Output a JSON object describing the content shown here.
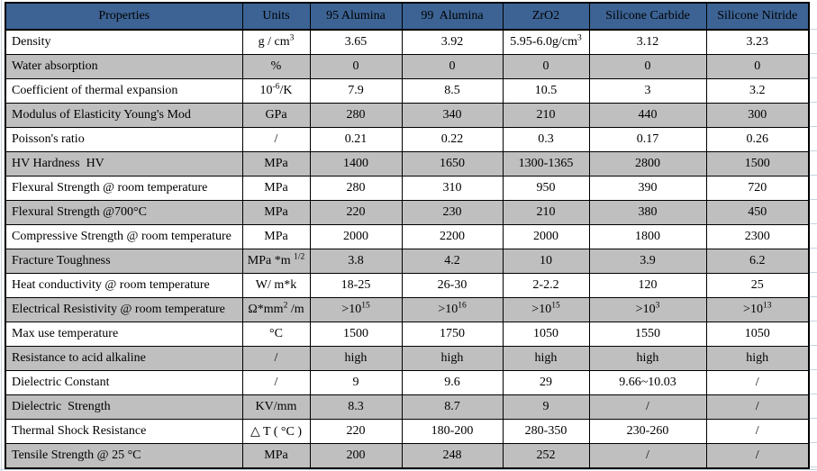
{
  "colors": {
    "header_bg": "#3c6394",
    "row_bg": "#ffffff",
    "row_alt_bg": "#bfbfbf",
    "border": "#000000",
    "gridline": "#c6d3e2",
    "text": "#000000"
  },
  "table": {
    "columns": [
      "Properties",
      "Units",
      "95 Alumina",
      "99  Alumina",
      "ZrO2",
      "Silicone Carbide",
      "Silicone Nitride"
    ],
    "rows": [
      {
        "property": "Density",
        "unit": [
          {
            "text": "g / cm"
          },
          {
            "sup": "3"
          }
        ],
        "values": [
          "3.65",
          "3.92",
          [
            {
              "text": "5.95-6.0g/cm"
            },
            {
              "sup": "3"
            }
          ],
          "3.12",
          "3.23"
        ]
      },
      {
        "property": "Water absorption",
        "unit": "%",
        "values": [
          "0",
          "0",
          "0",
          "0",
          "0"
        ]
      },
      {
        "property": "Coefficient of thermal expansion",
        "unit": [
          {
            "text": "10"
          },
          {
            "sup": "-6"
          },
          {
            "text": "/K"
          }
        ],
        "values": [
          "7.9",
          "8.5",
          "10.5",
          "3",
          "3.2"
        ]
      },
      {
        "property": "Modulus of Elasticity Young's Mod",
        "unit": "GPa",
        "values": [
          "280",
          "340",
          "210",
          "440",
          "300"
        ]
      },
      {
        "property": "Poisson's ratio",
        "unit": "/",
        "values": [
          "0.21",
          "0.22",
          "0.3",
          "0.17",
          "0.26"
        ]
      },
      {
        "property": "HV Hardness  HV",
        "unit": "MPa",
        "values": [
          "1400",
          "1650",
          "1300-1365",
          "2800",
          "1500"
        ]
      },
      {
        "property": "Flexural Strength @ room temperature",
        "unit": "MPa",
        "values": [
          "280",
          "310",
          "950",
          "390",
          "720"
        ]
      },
      {
        "property": "Flexural Strength @700°C",
        "unit": "MPa",
        "values": [
          "220",
          "230",
          "210",
          "380",
          "450"
        ]
      },
      {
        "property": "Compressive Strength @ room temperature",
        "unit": "MPa",
        "values": [
          "2000",
          "2200",
          "2000",
          "1800",
          "2300"
        ]
      },
      {
        "property": "Fracture Toughness",
        "unit": [
          {
            "text": "MPa *m "
          },
          {
            "sup": "1/2"
          }
        ],
        "values": [
          "3.8",
          "4.2",
          "10",
          "3.9",
          "6.2"
        ]
      },
      {
        "property": "Heat conductivity @ room temperature",
        "unit": "W/ m*k",
        "values": [
          "18-25",
          "26-30",
          "2-2.2",
          "120",
          "25"
        ]
      },
      {
        "property": "Electrical Resistivity @ room temperature",
        "unit": [
          {
            "text": "Ω*mm"
          },
          {
            "sup": "2"
          },
          {
            "text": " /m"
          }
        ],
        "values": [
          [
            {
              "text": ">10"
            },
            {
              "sup": "15"
            }
          ],
          [
            {
              "text": ">10"
            },
            {
              "sup": "16"
            }
          ],
          [
            {
              "text": ">10"
            },
            {
              "sup": "15"
            }
          ],
          [
            {
              "text": ">10"
            },
            {
              "sup": "3"
            }
          ],
          [
            {
              "text": ">10"
            },
            {
              "sup": "13"
            }
          ]
        ]
      },
      {
        "property": "Max use temperature",
        "unit": "°C",
        "values": [
          "1500",
          "1750",
          "1050",
          "1550",
          "1050"
        ]
      },
      {
        "property": "Resistance to acid alkaline",
        "unit": "/",
        "values": [
          "high",
          "high",
          "high",
          "high",
          "high"
        ]
      },
      {
        "property": "Dielectric Constant",
        "unit": "/",
        "values": [
          "9",
          "9.6",
          "29",
          "9.66~10.03",
          "/"
        ]
      },
      {
        "property": "Dielectric  Strength",
        "unit": "KV/mm",
        "values": [
          "8.3",
          "8.7",
          "9",
          "/",
          "/"
        ]
      },
      {
        "property": "Thermal Shock Resistance",
        "unit": "△ T ( °C )",
        "values": [
          "220",
          "180-200",
          "280-350",
          "230-260",
          "/"
        ]
      },
      {
        "property": "Tensile Strength @ 25 °C",
        "unit": "MPa",
        "values": [
          "200",
          "248",
          "252",
          "/",
          "/"
        ]
      }
    ]
  }
}
